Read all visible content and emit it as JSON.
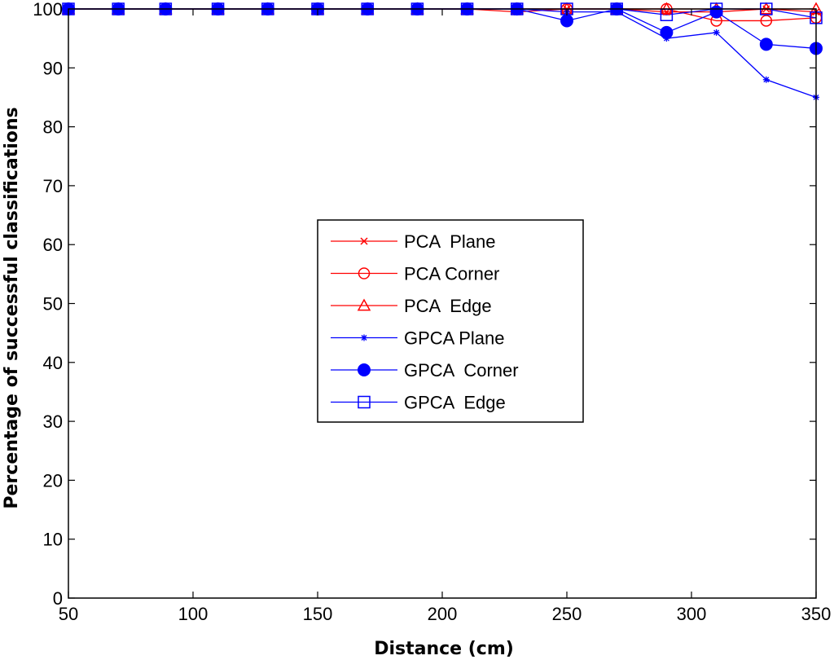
{
  "chart_data": {
    "type": "line",
    "title": "",
    "xlabel": "Distance (cm)",
    "ylabel": "Percentage of successful classifications",
    "xlim": [
      50,
      350
    ],
    "ylim": [
      0,
      100
    ],
    "xticks": [
      50,
      100,
      150,
      200,
      250,
      300,
      350
    ],
    "yticks": [
      0,
      10,
      20,
      30,
      40,
      50,
      60,
      70,
      80,
      90,
      100
    ],
    "grid": false,
    "legend_position": "center",
    "x": [
      50,
      70,
      89,
      110,
      130,
      150,
      170,
      190,
      210,
      230,
      250,
      270,
      290,
      310,
      330,
      350
    ],
    "series": [
      {
        "name": "PCA  Plane",
        "color": "#ff0000",
        "marker": "x",
        "values": [
          100,
          100,
          100,
          100,
          100,
          100,
          100,
          100,
          100,
          99.5,
          100,
          100,
          99.5,
          99.5,
          100,
          99.5
        ]
      },
      {
        "name": "PCA Corner",
        "color": "#ff0000",
        "marker": "circle",
        "values": [
          100,
          100,
          100,
          100,
          100,
          100,
          100,
          100,
          100,
          100,
          100,
          100,
          100,
          98,
          98,
          98.5
        ]
      },
      {
        "name": "PCA  Edge",
        "color": "#ff0000",
        "marker": "triangle",
        "values": [
          100,
          100,
          100,
          100,
          100,
          100,
          100,
          100,
          100,
          100,
          100,
          100,
          100,
          100,
          100,
          100
        ]
      },
      {
        "name": "GPCA Plane",
        "color": "#0000ff",
        "marker": "star",
        "values": [
          100,
          100,
          100,
          100,
          100,
          100,
          100,
          100,
          100,
          100,
          99.5,
          99.5,
          95,
          96,
          88,
          85
        ]
      },
      {
        "name": "GPCA  Corner",
        "color": "#0000ff",
        "marker": "dot",
        "values": [
          100,
          100,
          100,
          100,
          100,
          100,
          100,
          100,
          100,
          100,
          98,
          100,
          96,
          99.5,
          94,
          93.3
        ]
      },
      {
        "name": "GPCA  Edge",
        "color": "#0000ff",
        "marker": "square",
        "values": [
          100,
          100,
          100,
          100,
          100,
          100,
          100,
          100,
          100,
          100,
          100,
          100,
          99,
          100,
          100,
          98.5
        ]
      }
    ]
  }
}
